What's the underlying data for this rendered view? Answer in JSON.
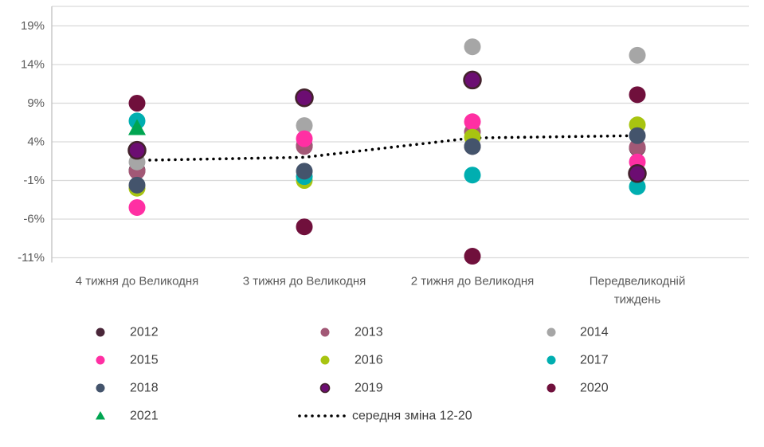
{
  "chart_data": {
    "type": "scatter",
    "categories": [
      "4 тижня до Великодня",
      "3 тижня до Великодня",
      "2 тижня до Великодня",
      "Передвеликодній тиждень"
    ],
    "y_ticks": [
      "19%",
      "14%",
      "9%",
      "4%",
      "-1%",
      "-6%",
      "-11%"
    ],
    "y_tick_values": [
      19,
      14,
      9,
      4,
      -1,
      -6,
      -11
    ],
    "ylim": [
      -13,
      21.5
    ],
    "grid": true,
    "legend_position": "bottom",
    "series": [
      {
        "name": "2012",
        "marker": "circle",
        "color": "#4a2639",
        "values": [
          0.3,
          3.5,
          3.4,
          3.2
        ]
      },
      {
        "name": "2013",
        "marker": "circle",
        "color": "#a25876",
        "values": [
          0.2,
          3.4,
          5.3,
          3.3
        ]
      },
      {
        "name": "2014",
        "marker": "circle",
        "color": "#a6a6a6",
        "values": [
          1.4,
          6.1,
          16.3,
          15.2
        ]
      },
      {
        "name": "2015",
        "marker": "circle",
        "color": "#ff2fa3",
        "values": [
          -4.5,
          4.4,
          6.6,
          1.4
        ]
      },
      {
        "name": "2016",
        "marker": "circle",
        "color": "#a8c410",
        "values": [
          -2.0,
          -1.0,
          4.6,
          6.2
        ]
      },
      {
        "name": "2017",
        "marker": "circle",
        "color": "#00aeb0",
        "values": [
          6.7,
          -0.5,
          -0.3,
          -1.8
        ]
      },
      {
        "name": "2018",
        "marker": "circle",
        "color": "#44546c",
        "values": [
          -1.6,
          0.2,
          3.4,
          4.8
        ]
      },
      {
        "name": "2019",
        "marker": "circle",
        "color": "#6c0d72",
        "marker_border": "#43222c",
        "values": [
          2.9,
          9.7,
          12.0,
          -0.1
        ]
      },
      {
        "name": "2020",
        "marker": "circle",
        "color": "#70103c",
        "values": [
          9.0,
          -7.0,
          -10.8,
          10.1
        ]
      },
      {
        "name": "2021",
        "marker": "triangle",
        "color": "#00a551",
        "values": [
          5.8,
          null,
          null,
          null
        ]
      }
    ],
    "average_line": {
      "name": "середня зміна 12-20",
      "style": "dotted",
      "color": "#000000",
      "values": [
        1.6,
        2.0,
        4.5,
        4.8
      ]
    }
  },
  "colors": {
    "gridline": "#d9d9d9",
    "axis_line": "#c0c0c0",
    "tick_label": "#595959",
    "category_label": "#595959",
    "legend_label": "#404040",
    "background": "#ffffff"
  }
}
